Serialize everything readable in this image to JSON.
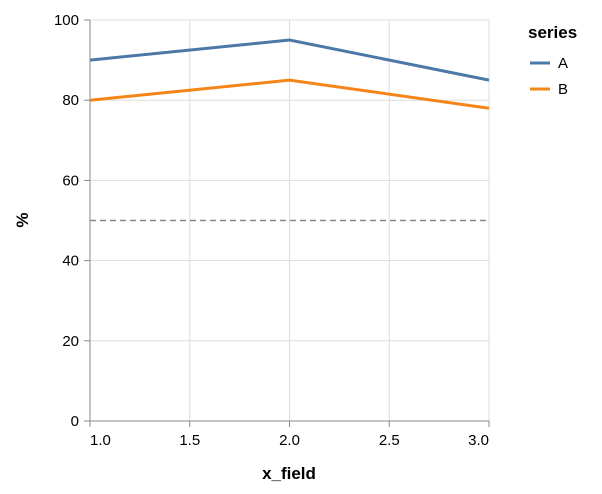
{
  "chart_data": {
    "type": "line",
    "xlabel": "x_field",
    "ylabel": "%",
    "xlim": [
      1.0,
      3.0
    ],
    "ylim": [
      0,
      100
    ],
    "x_ticks": [
      "1.0",
      "1.5",
      "2.0",
      "2.5",
      "3.0"
    ],
    "y_ticks": [
      "0",
      "20",
      "40",
      "60",
      "80",
      "100"
    ],
    "x": [
      1.0,
      2.0,
      3.0
    ],
    "series": [
      {
        "name": "A",
        "values": [
          90,
          95,
          85
        ],
        "color": "#4c78a8"
      },
      {
        "name": "B",
        "values": [
          80,
          85,
          78
        ],
        "color": "#f58518"
      }
    ],
    "reference_line": {
      "y": 50,
      "style": "dashed",
      "color": "#888888"
    },
    "grid": true,
    "legend": {
      "title": "series",
      "position": "top-right"
    }
  }
}
